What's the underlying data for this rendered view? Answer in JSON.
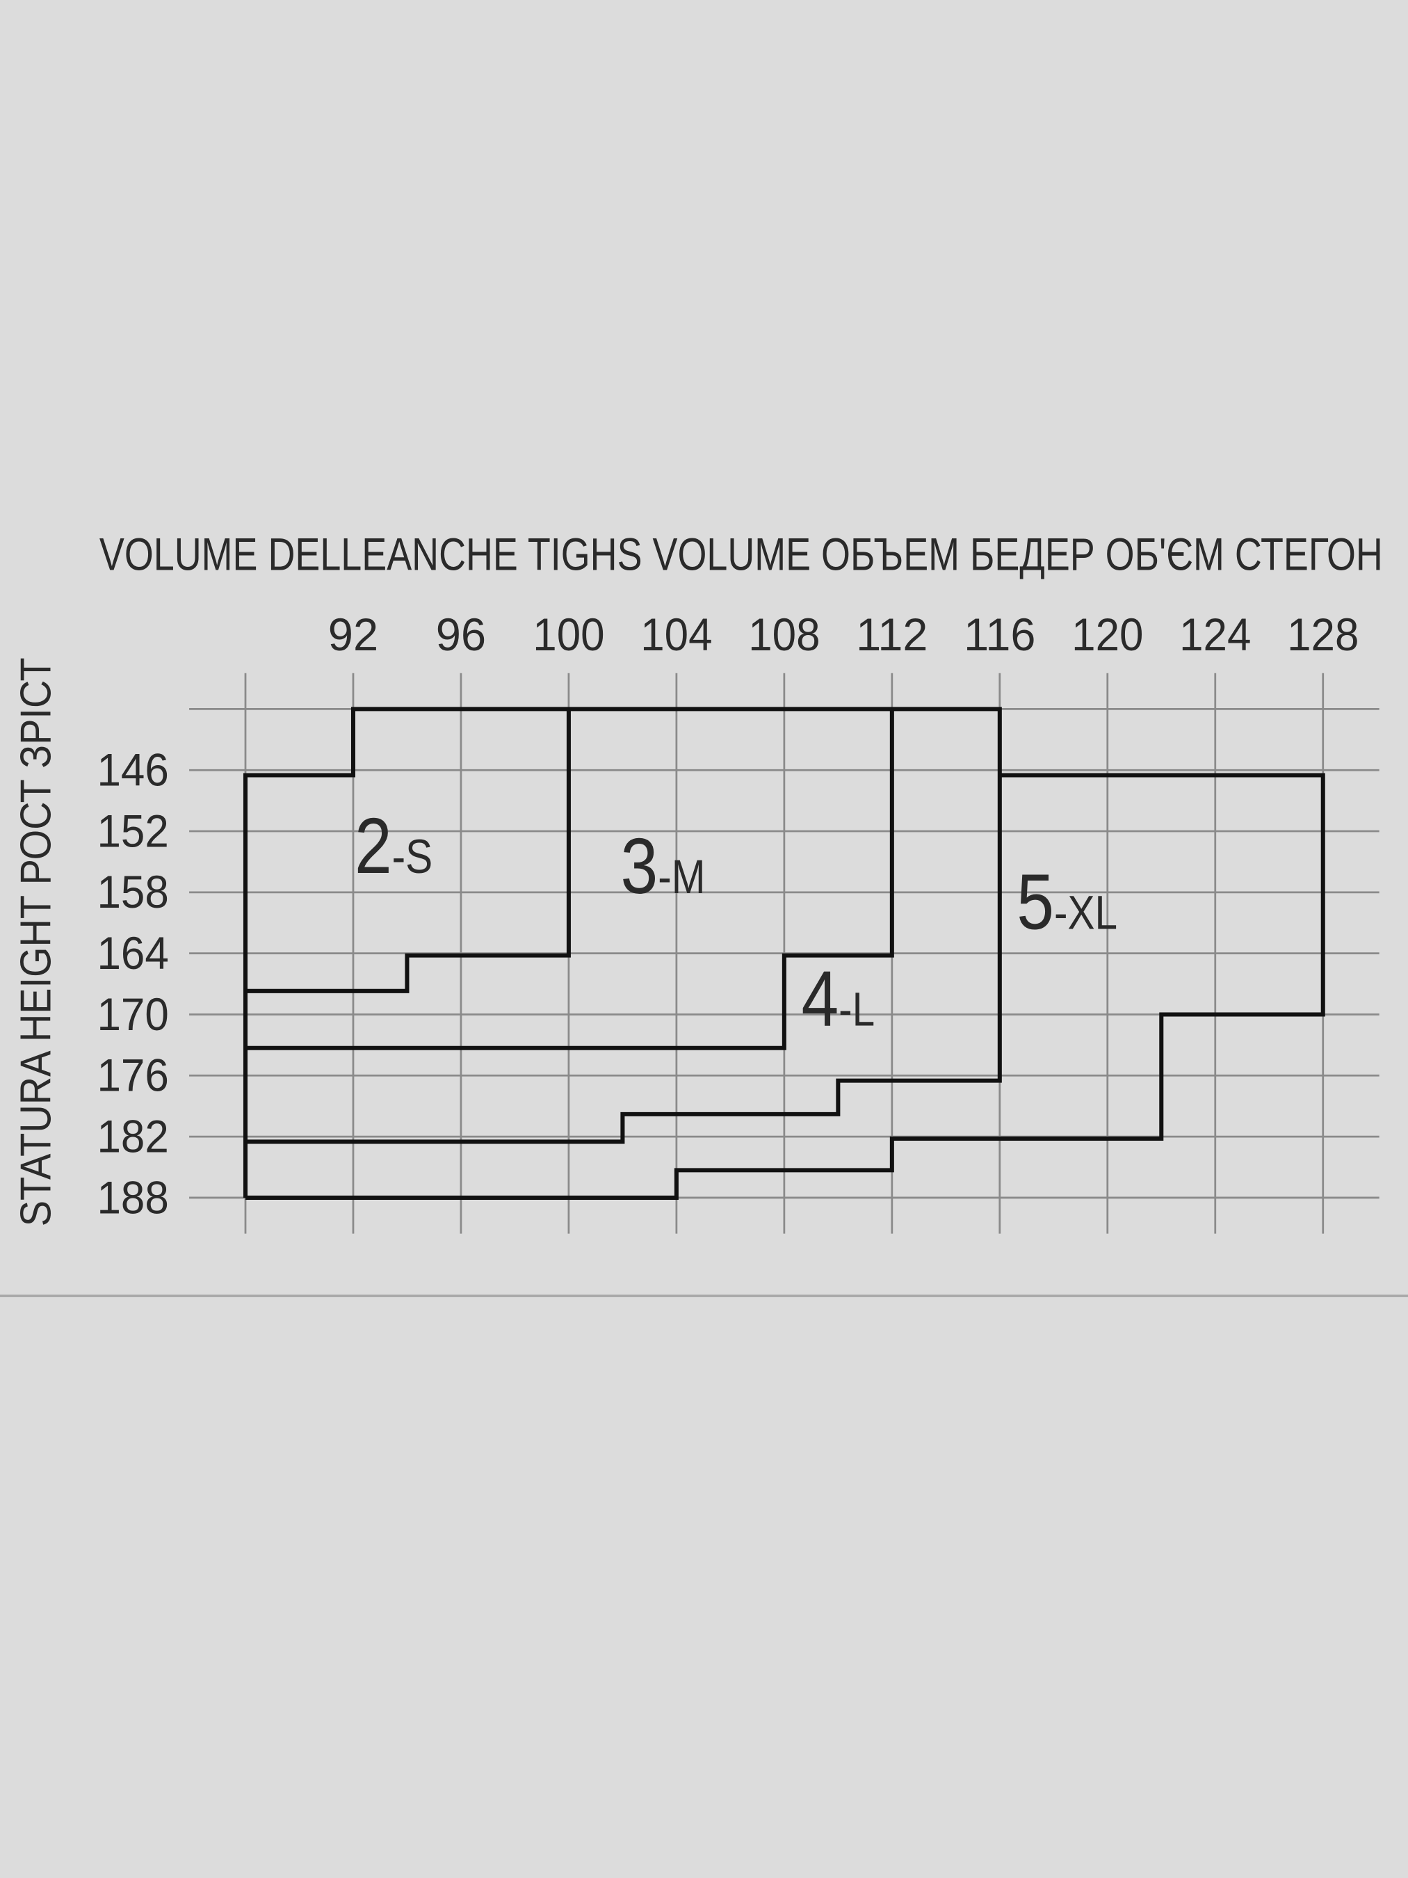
{
  "chart_data": {
    "type": "table",
    "title": "VOLUME DELLEANCHE  TIGHS VOLUME  ОБЪЕМ БЕДЕР  ОБ'ЄМ СТЕГОН",
    "ylabel": "STATURA  HEIGHT  РОСТ  ЗРІСТ",
    "x_ticks": [
      92,
      96,
      100,
      104,
      108,
      112,
      116,
      120,
      124,
      128
    ],
    "y_ticks": [
      146,
      152,
      158,
      164,
      170,
      176,
      182,
      188
    ],
    "xlim": [
      88,
      128
    ],
    "ylim": [
      140,
      188
    ],
    "grid": true,
    "boundaries": [
      {
        "points": [
          [
            88,
            188
          ],
          [
            88,
            146.5
          ],
          [
            92,
            146.5
          ],
          [
            92,
            140
          ],
          [
            116,
            140
          ],
          [
            116,
            176.5
          ],
          [
            110,
            176.5
          ],
          [
            110,
            179.8
          ],
          [
            102,
            179.8
          ],
          [
            102,
            182.5
          ],
          [
            88,
            182.5
          ]
        ]
      },
      {
        "points": [
          [
            88,
            188
          ],
          [
            104,
            188
          ],
          [
            104,
            185.3
          ],
          [
            112,
            185.3
          ],
          [
            112,
            182.2
          ],
          [
            122,
            182.2
          ],
          [
            122,
            170
          ],
          [
            128,
            170
          ],
          [
            128,
            146.5
          ],
          [
            116,
            146.5
          ]
        ]
      },
      {
        "points": [
          [
            100,
            140
          ],
          [
            100,
            164.2
          ],
          [
            94,
            164.2
          ],
          [
            94,
            167.7
          ],
          [
            88,
            167.7
          ]
        ]
      },
      {
        "points": [
          [
            112,
            140
          ],
          [
            112,
            164.2
          ],
          [
            108,
            164.2
          ],
          [
            108,
            173.3
          ],
          [
            88,
            173.3
          ]
        ]
      }
    ],
    "sizes": [
      {
        "num": "2",
        "letter": "-S",
        "x": 93.5,
        "y": 153.5
      },
      {
        "num": "3",
        "letter": "-M",
        "x": 103.5,
        "y": 155.5
      },
      {
        "num": "4",
        "letter": "-L",
        "x": 110,
        "y": 168.5
      },
      {
        "num": "5",
        "letter": "-XL",
        "x": 118.5,
        "y": 159
      }
    ],
    "colors": {
      "background": "#dcdcdc",
      "grid": "#8a8a8a",
      "outline": "#111111",
      "text": "#2a2a2a"
    }
  }
}
